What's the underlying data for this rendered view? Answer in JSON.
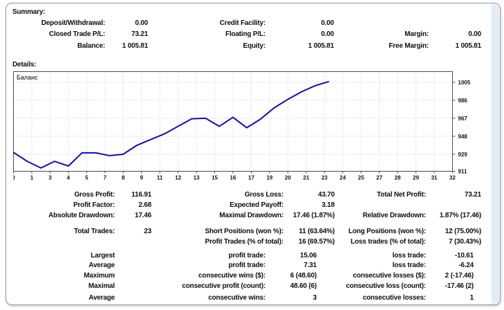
{
  "summary": {
    "title": "Summary:",
    "deposit_withdrawal_label": "Deposit/Withdrawal:",
    "deposit_withdrawal": "0.00",
    "closed_trade_pl_label": "Closed Trade P/L:",
    "closed_trade_pl": "73.21",
    "balance_label": "Balance:",
    "balance": "1 005.81",
    "credit_facility_label": "Credit Facility:",
    "credit_facility": "0.00",
    "floating_pl_label": "Floating P/L:",
    "floating_pl": "0.00",
    "equity_label": "Equity:",
    "equity": "1 005.81",
    "margin_label": "Margin:",
    "margin": "0.00",
    "free_margin_label": "Free Margin:",
    "free_margin": "1 005.81"
  },
  "details": {
    "title": "Details:",
    "gross_profit_label": "Gross Profit:",
    "gross_profit": "116.91",
    "gross_loss_label": "Gross Loss:",
    "gross_loss": "43.70",
    "total_net_profit_label": "Total Net Profit:",
    "total_net_profit": "73.21",
    "profit_factor_label": "Profit Factor:",
    "profit_factor": "2.68",
    "expected_payoff_label": "Expected Payoff:",
    "expected_payoff": "3.18",
    "absolute_drawdown_label": "Absolute Drawdown:",
    "absolute_drawdown": "17.46",
    "maximal_drawdown_label": "Maximal Drawdown:",
    "maximal_drawdown": "17.46 (1.87%)",
    "relative_drawdown_label": "Relative Drawdown:",
    "relative_drawdown": "1.87% (17.46)",
    "total_trades_label": "Total Trades:",
    "total_trades": "23",
    "short_positions_label": "Short Positions (won %):",
    "short_positions": "11 (63.64%)",
    "long_positions_label": "Long Positions (won %):",
    "long_positions": "12 (75.00%)",
    "profit_trades_label": "Profit Trades (% of total):",
    "profit_trades": "16 (69.57%)",
    "loss_trades_label": "Loss trades (% of total):",
    "loss_trades": "7 (30.43%)",
    "row_largest": "Largest",
    "row_average": "Average",
    "row_maximum": "Maximum",
    "row_maximal": "Maximal",
    "row_average2": "Average",
    "largest_profit_trade_label": "profit trade:",
    "largest_profit_trade": "15.06",
    "largest_loss_trade_label": "loss trade:",
    "largest_loss_trade": "-10.61",
    "average_profit_trade_label": "profit trade:",
    "average_profit_trade": "7.31",
    "average_loss_trade_label": "loss trade:",
    "average_loss_trade": "-6.24",
    "max_consec_wins_label": "consecutive wins ($):",
    "max_consec_wins": "6 (48.60)",
    "max_consec_losses_label": "consecutive losses ($):",
    "max_consec_losses": "2 (-17.46)",
    "maximal_consec_profit_label": "consecutive profit (count):",
    "maximal_consec_profit": "48.60 (6)",
    "maximal_consec_loss_label": "consecutive loss (count):",
    "maximal_consec_loss": "-17.46 (2)",
    "avg_consec_wins_label": "consecutive wins:",
    "avg_consec_wins": "3",
    "avg_consec_losses_label": "consecutive losses:",
    "avg_consec_losses": "1"
  },
  "chart_data": {
    "type": "line",
    "title": "Баланс",
    "legend_position": "top-left",
    "grid": true,
    "x": [
      0,
      1,
      2,
      3,
      4,
      5,
      6,
      7,
      8,
      9,
      10,
      11,
      12,
      13,
      14,
      15,
      16,
      17,
      18,
      19,
      20,
      21,
      22,
      23
    ],
    "balance": [
      931,
      921.5,
      914.5,
      921.5,
      916.5,
      930.5,
      930.5,
      927.5,
      929,
      938.5,
      944.5,
      950.5,
      958.5,
      966.5,
      967,
      958.5,
      968,
      957,
      966,
      978,
      987,
      995,
      1001.5,
      1005.81
    ],
    "x_axis_labels": [
      "0",
      "1",
      "3",
      "4",
      "5",
      "7",
      "8",
      "9",
      "11",
      "12",
      "13",
      "15",
      "16",
      "17",
      "19",
      "20",
      "21",
      "23",
      "24",
      "25",
      "27",
      "28",
      "29",
      "31",
      "32"
    ],
    "x_max": 32,
    "y_ticks": [
      1005,
      986,
      967,
      948,
      929,
      911
    ],
    "y_range": [
      911,
      1016.3
    ],
    "line_color": "#0b0bc7",
    "grid_color": "#c9c9c9",
    "border_color": "#4a4a4a",
    "tick_text_color": "#111111"
  }
}
